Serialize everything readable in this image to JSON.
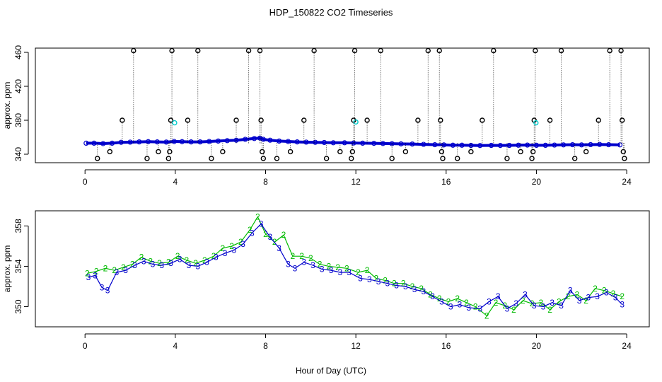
{
  "title": "HDP_150822  CO2 Timeseries",
  "xlabel": "Hour of Day (UTC)",
  "colors": {
    "frame": "#000000",
    "series_blue": "#0000cc",
    "series_green": "#00bb00",
    "cyan_points": "#00cccc"
  },
  "chart_data": [
    {
      "type": "scatter",
      "panel": "top",
      "ylabel": "approx. ppm",
      "xlim": [
        -2.2,
        25
      ],
      "ylim": [
        330,
        465
      ],
      "x_ticks": [
        0,
        4,
        8,
        12,
        16,
        20,
        24
      ],
      "y_ticks": [
        340,
        380,
        420,
        460
      ],
      "marker": "o",
      "series": [
        {
          "color": "blue",
          "points": [
            [
              0.05,
              353
            ],
            [
              0.4,
              353
            ],
            [
              0.8,
              352.5
            ],
            [
              1.2,
              353
            ],
            [
              1.6,
              354
            ],
            [
              2.0,
              354.2
            ],
            [
              2.4,
              354.5
            ],
            [
              2.8,
              354.8
            ],
            [
              3.2,
              354.5
            ],
            [
              3.6,
              354.3
            ],
            [
              3.95,
              355
            ],
            [
              4.3,
              354.8
            ],
            [
              4.7,
              354.5
            ],
            [
              5.1,
              354.5
            ],
            [
              5.5,
              355
            ],
            [
              5.9,
              355.5
            ],
            [
              6.3,
              356
            ],
            [
              6.7,
              356.5
            ],
            [
              7.1,
              357.5
            ],
            [
              7.5,
              358.5
            ],
            [
              7.75,
              359
            ],
            [
              7.9,
              357.5
            ],
            [
              8.2,
              356.5
            ],
            [
              8.6,
              355.5
            ],
            [
              9.0,
              355
            ],
            [
              9.4,
              354.5
            ],
            [
              9.8,
              354.2
            ],
            [
              10.2,
              354
            ],
            [
              10.6,
              353.8
            ],
            [
              11.0,
              353.5
            ],
            [
              11.5,
              353.5
            ],
            [
              11.9,
              353.2
            ],
            [
              12.3,
              353
            ],
            [
              12.8,
              352.8
            ],
            [
              13.2,
              352.6
            ],
            [
              13.6,
              352.4
            ],
            [
              14.0,
              352.2
            ],
            [
              14.5,
              352
            ],
            [
              15.0,
              351.6
            ],
            [
              15.5,
              351.2
            ],
            [
              15.9,
              351
            ],
            [
              16.3,
              350.6
            ],
            [
              16.7,
              350.6
            ],
            [
              17.1,
              350.4
            ],
            [
              17.5,
              350.2
            ],
            [
              18.0,
              350.4
            ],
            [
              18.4,
              350.3
            ],
            [
              18.8,
              350.4
            ],
            [
              19.2,
              350.6
            ],
            [
              19.6,
              350.8
            ],
            [
              20.0,
              350.5
            ],
            [
              20.4,
              350.5
            ],
            [
              20.8,
              350.8
            ],
            [
              21.2,
              351
            ],
            [
              21.6,
              351.2
            ],
            [
              22.0,
              351
            ],
            [
              22.4,
              351.3
            ],
            [
              22.8,
              351.5
            ],
            [
              23.2,
              351.2
            ],
            [
              23.7,
              351
            ]
          ]
        },
        {
          "color": "black",
          "points": [
            [
              0.55,
              335
            ],
            [
              1.1,
              343
            ],
            [
              1.65,
              380
            ],
            [
              2.15,
              462
            ],
            [
              2.75,
              335
            ],
            [
              3.25,
              343
            ],
            [
              3.7,
              335
            ],
            [
              3.75,
              343
            ],
            [
              3.8,
              380
            ],
            [
              3.85,
              462
            ],
            [
              4.55,
              380
            ],
            [
              5.0,
              462
            ],
            [
              5.6,
              335
            ],
            [
              6.1,
              343
            ],
            [
              6.7,
              380
            ],
            [
              7.25,
              462
            ],
            [
              7.75,
              462
            ],
            [
              7.8,
              380
            ],
            [
              7.85,
              343
            ],
            [
              7.9,
              335
            ],
            [
              8.5,
              335
            ],
            [
              9.1,
              343
            ],
            [
              9.7,
              380
            ],
            [
              10.15,
              462
            ],
            [
              10.7,
              335
            ],
            [
              11.3,
              343
            ],
            [
              11.8,
              335
            ],
            [
              11.85,
              343
            ],
            [
              11.9,
              380
            ],
            [
              11.95,
              462
            ],
            [
              12.5,
              380
            ],
            [
              13.1,
              462
            ],
            [
              13.6,
              335
            ],
            [
              14.2,
              343
            ],
            [
              14.75,
              380
            ],
            [
              15.2,
              462
            ],
            [
              15.7,
              462
            ],
            [
              15.75,
              380
            ],
            [
              15.8,
              343
            ],
            [
              15.85,
              335
            ],
            [
              16.5,
              335
            ],
            [
              17.1,
              343
            ],
            [
              17.6,
              380
            ],
            [
              18.1,
              462
            ],
            [
              18.7,
              335
            ],
            [
              19.3,
              343
            ],
            [
              19.8,
              335
            ],
            [
              19.85,
              343
            ],
            [
              19.9,
              380
            ],
            [
              19.95,
              462
            ],
            [
              20.6,
              380
            ],
            [
              21.1,
              462
            ],
            [
              21.7,
              335
            ],
            [
              22.2,
              343
            ],
            [
              22.75,
              380
            ],
            [
              23.25,
              462
            ],
            [
              23.75,
              462
            ],
            [
              23.8,
              380
            ],
            [
              23.85,
              343
            ],
            [
              23.9,
              335
            ]
          ]
        },
        {
          "color": "cyan",
          "points": [
            [
              3.97,
              377
            ],
            [
              12.0,
              378
            ],
            [
              19.98,
              377
            ]
          ]
        }
      ]
    },
    {
      "type": "scatter",
      "panel": "bottom",
      "ylabel": "approx. ppm",
      "xlim": [
        -2.2,
        25
      ],
      "ylim": [
        348,
        359.5
      ],
      "x_ticks": [
        0,
        4,
        8,
        12,
        16,
        20,
        24
      ],
      "y_ticks": [
        350,
        354,
        358
      ],
      "marker_labels": [
        "2",
        "3"
      ],
      "series": [
        {
          "name": "2",
          "color": "green",
          "points": [
            [
              0.1,
              353.3
            ],
            [
              0.5,
              353.5
            ],
            [
              0.9,
              353.8
            ],
            [
              1.3,
              353.6
            ],
            [
              1.7,
              353.9
            ],
            [
              2.1,
              354.2
            ],
            [
              2.5,
              354.9
            ],
            [
              2.9,
              354.5
            ],
            [
              3.3,
              354.3
            ],
            [
              3.7,
              354.4
            ],
            [
              4.1,
              355
            ],
            [
              4.5,
              354.6
            ],
            [
              4.9,
              354.3
            ],
            [
              5.3,
              354.6
            ],
            [
              5.7,
              355
            ],
            [
              6.1,
              355.8
            ],
            [
              6.5,
              356
            ],
            [
              6.9,
              356.4
            ],
            [
              7.3,
              357.6
            ],
            [
              7.65,
              358.9
            ],
            [
              8.0,
              357.2
            ],
            [
              8.4,
              356.4
            ],
            [
              8.8,
              357.1
            ],
            [
              9.2,
              355
            ],
            [
              9.6,
              355
            ],
            [
              10.0,
              354.8
            ],
            [
              10.4,
              354.2
            ],
            [
              10.8,
              354
            ],
            [
              11.2,
              353.9
            ],
            [
              11.6,
              353.8
            ],
            [
              12.1,
              353.4
            ],
            [
              12.5,
              353.6
            ],
            [
              12.9,
              352.8
            ],
            [
              13.3,
              352.6
            ],
            [
              13.7,
              352.3
            ],
            [
              14.1,
              352.3
            ],
            [
              14.5,
              352
            ],
            [
              14.9,
              351.8
            ],
            [
              15.3,
              351.2
            ],
            [
              15.7,
              350.8
            ],
            [
              16.1,
              350.5
            ],
            [
              16.5,
              350.8
            ],
            [
              16.9,
              350.4
            ],
            [
              17.3,
              350
            ],
            [
              17.8,
              349.1
            ],
            [
              18.2,
              350.4
            ],
            [
              18.6,
              350.1
            ],
            [
              19.0,
              349.7
            ],
            [
              19.4,
              350.6
            ],
            [
              19.8,
              350.3
            ],
            [
              20.2,
              350.4
            ],
            [
              20.6,
              349.7
            ],
            [
              21.0,
              350.5
            ],
            [
              21.4,
              351
            ],
            [
              21.8,
              351.2
            ],
            [
              22.2,
              350.6
            ],
            [
              22.6,
              351.8
            ],
            [
              23.0,
              351.6
            ],
            [
              23.4,
              351.3
            ],
            [
              23.8,
              351
            ]
          ]
        },
        {
          "name": "3",
          "color": "blue",
          "points": [
            [
              0.15,
              352.9
            ],
            [
              0.45,
              353.1
            ],
            [
              0.75,
              351.9
            ],
            [
              1.0,
              351.6
            ],
            [
              1.4,
              353.4
            ],
            [
              1.8,
              353.6
            ],
            [
              2.2,
              354.1
            ],
            [
              2.6,
              354.5
            ],
            [
              3.0,
              354.2
            ],
            [
              3.4,
              354.1
            ],
            [
              3.8,
              354.3
            ],
            [
              4.2,
              354.7
            ],
            [
              4.6,
              354.1
            ],
            [
              5.0,
              354
            ],
            [
              5.4,
              354.4
            ],
            [
              5.8,
              354.9
            ],
            [
              6.2,
              355.3
            ],
            [
              6.6,
              355.6
            ],
            [
              7.0,
              356.2
            ],
            [
              7.4,
              357.3
            ],
            [
              7.8,
              358.2
            ],
            [
              8.2,
              356.9
            ],
            [
              8.6,
              355.8
            ],
            [
              9.0,
              354.2
            ],
            [
              9.3,
              353.8
            ],
            [
              9.7,
              354.4
            ],
            [
              10.1,
              354.1
            ],
            [
              10.5,
              353.7
            ],
            [
              10.9,
              353.6
            ],
            [
              11.3,
              353.4
            ],
            [
              11.7,
              353.4
            ],
            [
              12.2,
              352.8
            ],
            [
              12.6,
              352.7
            ],
            [
              13.0,
              352.5
            ],
            [
              13.4,
              352.3
            ],
            [
              13.8,
              352.1
            ],
            [
              14.2,
              352
            ],
            [
              14.6,
              351.7
            ],
            [
              15.0,
              351.5
            ],
            [
              15.4,
              351
            ],
            [
              15.8,
              350.5
            ],
            [
              16.2,
              350
            ],
            [
              16.6,
              350.2
            ],
            [
              17.0,
              349.9
            ],
            [
              17.5,
              349.8
            ],
            [
              17.9,
              350.5
            ],
            [
              18.3,
              351
            ],
            [
              18.7,
              349.8
            ],
            [
              19.1,
              350.3
            ],
            [
              19.5,
              351.2
            ],
            [
              19.9,
              350.1
            ],
            [
              20.3,
              350
            ],
            [
              20.7,
              350.4
            ],
            [
              21.1,
              350.1
            ],
            [
              21.5,
              351.6
            ],
            [
              21.9,
              350.6
            ],
            [
              22.3,
              350.9
            ],
            [
              22.7,
              351
            ],
            [
              23.1,
              351.4
            ],
            [
              23.5,
              350.9
            ],
            [
              23.8,
              350.2
            ]
          ]
        }
      ]
    }
  ]
}
